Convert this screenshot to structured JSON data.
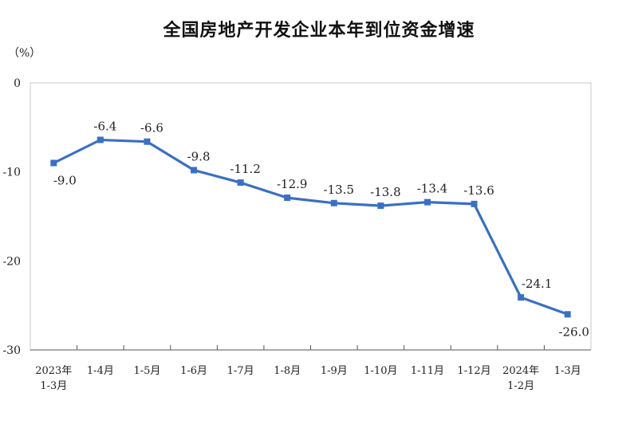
{
  "chart_data": {
    "type": "line",
    "title": "全国房地产开发企业本年到位资金增速",
    "unit": "（%）",
    "ylim": [
      -30,
      0
    ],
    "yticks": [
      "0",
      "-10",
      "-20",
      "-30"
    ],
    "grid": false,
    "categories": [
      [
        "2023年",
        "1-3月"
      ],
      [
        "1-4月"
      ],
      [
        "1-5月"
      ],
      [
        "1-6月"
      ],
      [
        "1-7月"
      ],
      [
        "1-8月"
      ],
      [
        "1-9月"
      ],
      [
        "1-10月"
      ],
      [
        "1-11月"
      ],
      [
        "1-12月"
      ],
      [
        "2024年",
        "1-2月"
      ],
      [
        "1-3月"
      ]
    ],
    "series": [
      {
        "values": [
          -9.0,
          -6.4,
          -6.6,
          -9.8,
          -11.2,
          -12.9,
          -13.5,
          -13.8,
          -13.4,
          -13.6,
          -24.1,
          -26.0
        ],
        "labels": [
          "-9.0",
          "-6.4",
          "-6.6",
          "-9.8",
          "-11.2",
          "-12.9",
          "-13.5",
          "-13.8",
          "-13.4",
          "-13.6",
          "-24.1",
          "-26.0"
        ],
        "color": "#3a6fc4"
      }
    ]
  }
}
